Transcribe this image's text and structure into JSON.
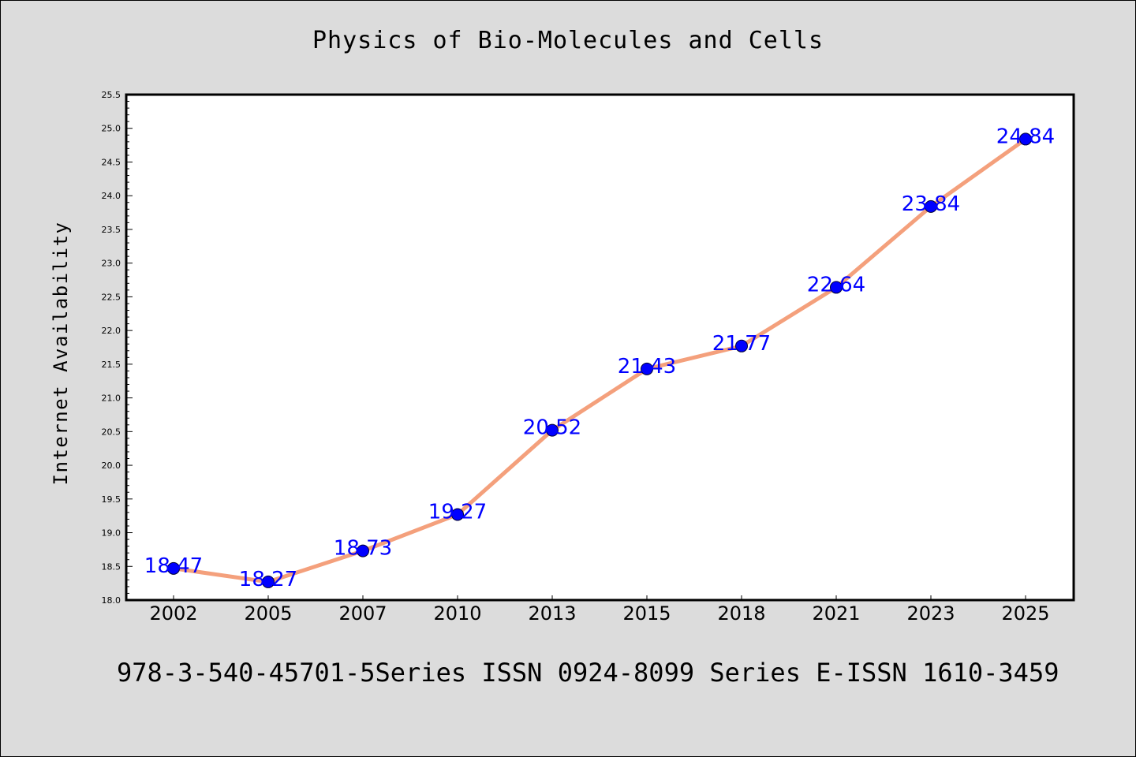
{
  "chart_data": {
    "type": "line",
    "title": "Physics of Bio-Molecules and Cells",
    "xlabel": "",
    "ylabel": "Internet Availability",
    "categories": [
      "2002",
      "2005",
      "2007",
      "2010",
      "2013",
      "2015",
      "2018",
      "2021",
      "2023",
      "2025"
    ],
    "series": [
      {
        "values": [
          18.47,
          18.27,
          18.73,
          19.27,
          20.52,
          21.43,
          21.77,
          22.64,
          23.84,
          24.84
        ],
        "line_color": "#f4a07c",
        "marker_color": "#0000ff"
      }
    ],
    "data_labels": [
      "18.47",
      "18.27",
      "18.73",
      "19.27",
      "20.52",
      "21.43",
      "21.77",
      "22.64",
      "23.84",
      "24.84"
    ],
    "ylim": [
      18.0,
      25.5
    ],
    "yticks": [
      "18.0",
      "18.5",
      "19.0",
      "19.5",
      "20.0",
      "20.5",
      "21.0",
      "21.5",
      "22.0",
      "22.5",
      "23.0",
      "23.5",
      "24.0",
      "24.5",
      "25.0",
      "25.5"
    ],
    "grid": false,
    "legend": "none"
  },
  "footer": {
    "text": "978-3-540-45701-5Series ISSN 0924-8099 Series E-ISSN 1610-3459"
  },
  "colors": {
    "background": "#dcdcdc",
    "plot_area": "#ffffff",
    "line": "#f4a07c",
    "marker": "#0000ff",
    "data_label": "#0000ff"
  }
}
